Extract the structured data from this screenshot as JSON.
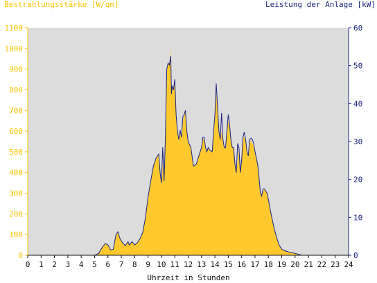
{
  "chart_data": {
    "type": "area",
    "ylabel_left": "Bestrahlungsstärke [W/qm]",
    "ylabel_right": "Leistung der Anlage [kW]",
    "xlabel": "Uhrzeit in Stunden",
    "xlim": [
      0,
      24
    ],
    "ylim_left": [
      0,
      1100
    ],
    "ylim_right": [
      0,
      60
    ],
    "x_ticks": [
      "0",
      "1",
      "2",
      "3",
      "4",
      "5",
      "6",
      "7",
      "8",
      "9",
      "10",
      "11",
      "12",
      "13",
      "14",
      "15",
      "16",
      "17",
      "18",
      "19",
      "20",
      "21",
      "22",
      "23",
      "24"
    ],
    "y_ticks_left": [
      "0",
      "100",
      "200",
      "300",
      "400",
      "500",
      "600",
      "700",
      "800",
      "900",
      "1000",
      "1100"
    ],
    "y_ticks_right": [
      "0",
      "10",
      "20",
      "30",
      "40",
      "50",
      "60"
    ],
    "grid": false,
    "colors": {
      "irradiance_fill": "#ffc92e",
      "power_line": "#1a237e",
      "plot_bg": "#dcdcdc",
      "left_axis": "#f5c400",
      "right_axis": "#1a237e"
    },
    "series": [
      {
        "axis": "left",
        "points": [
          [
            0,
            0
          ],
          [
            5,
            0
          ],
          [
            5.3,
            10
          ],
          [
            5.6,
            40
          ],
          [
            5.8,
            55
          ],
          [
            6.0,
            50
          ],
          [
            6.2,
            25
          ],
          [
            6.4,
            30
          ],
          [
            6.6,
            95
          ],
          [
            6.75,
            110
          ],
          [
            6.9,
            80
          ],
          [
            7.1,
            60
          ],
          [
            7.3,
            45
          ],
          [
            7.5,
            65
          ],
          [
            7.6,
            50
          ],
          [
            7.8,
            65
          ],
          [
            8.0,
            50
          ],
          [
            8.2,
            60
          ],
          [
            8.4,
            80
          ],
          [
            8.6,
            110
          ],
          [
            8.8,
            180
          ],
          [
            9.0,
            280
          ],
          [
            9.2,
            360
          ],
          [
            9.4,
            430
          ],
          [
            9.6,
            470
          ],
          [
            9.8,
            490
          ],
          [
            9.9,
            400
          ],
          [
            10.0,
            350
          ],
          [
            10.1,
            450
          ],
          [
            10.2,
            360
          ],
          [
            10.3,
            580
          ],
          [
            10.4,
            900
          ],
          [
            10.5,
            930
          ],
          [
            10.6,
            920
          ],
          [
            10.7,
            1000
          ],
          [
            10.75,
            780
          ],
          [
            10.8,
            820
          ],
          [
            10.9,
            800
          ],
          [
            11.0,
            850
          ],
          [
            11.1,
            680
          ],
          [
            11.2,
            600
          ],
          [
            11.3,
            560
          ],
          [
            11.4,
            590
          ],
          [
            11.5,
            570
          ],
          [
            11.6,
            640
          ],
          [
            11.7,
            680
          ],
          [
            11.8,
            700
          ],
          [
            11.9,
            600
          ],
          [
            12.0,
            550
          ],
          [
            12.2,
            520
          ],
          [
            12.4,
            430
          ],
          [
            12.6,
            440
          ],
          [
            12.8,
            480
          ],
          [
            13.0,
            520
          ],
          [
            13.1,
            560
          ],
          [
            13.2,
            560
          ],
          [
            13.3,
            520
          ],
          [
            13.4,
            500
          ],
          [
            13.5,
            520
          ],
          [
            13.6,
            510
          ],
          [
            13.8,
            500
          ],
          [
            13.9,
            600
          ],
          [
            14.0,
            680
          ],
          [
            14.1,
            780
          ],
          [
            14.2,
            720
          ],
          [
            14.3,
            600
          ],
          [
            14.4,
            560
          ],
          [
            14.5,
            600
          ],
          [
            14.6,
            560
          ],
          [
            14.7,
            520
          ],
          [
            14.8,
            520
          ],
          [
            14.9,
            600
          ],
          [
            15.0,
            650
          ],
          [
            15.1,
            630
          ],
          [
            15.2,
            560
          ],
          [
            15.3,
            520
          ],
          [
            15.4,
            520
          ],
          [
            15.5,
            440
          ],
          [
            15.6,
            400
          ],
          [
            15.7,
            460
          ],
          [
            15.8,
            520
          ],
          [
            15.9,
            400
          ],
          [
            16.0,
            460
          ],
          [
            16.1,
            570
          ],
          [
            16.2,
            570
          ],
          [
            16.3,
            560
          ],
          [
            16.4,
            500
          ],
          [
            16.5,
            480
          ],
          [
            16.6,
            560
          ],
          [
            16.7,
            550
          ],
          [
            16.8,
            540
          ],
          [
            16.9,
            530
          ],
          [
            17.0,
            500
          ],
          [
            17.2,
            440
          ],
          [
            17.3,
            380
          ],
          [
            17.4,
            300
          ],
          [
            17.5,
            280
          ],
          [
            17.6,
            310
          ],
          [
            17.7,
            320
          ],
          [
            17.8,
            310
          ],
          [
            17.9,
            300
          ],
          [
            18.0,
            270
          ],
          [
            18.2,
            200
          ],
          [
            18.4,
            140
          ],
          [
            18.6,
            90
          ],
          [
            18.8,
            50
          ],
          [
            19.0,
            30
          ],
          [
            19.3,
            20
          ],
          [
            19.6,
            15
          ],
          [
            20.0,
            10
          ],
          [
            20.5,
            0
          ],
          [
            24,
            0
          ]
        ]
      },
      {
        "axis": "right",
        "points": [
          [
            0,
            0
          ],
          [
            5,
            0
          ],
          [
            5.3,
            0.5
          ],
          [
            5.6,
            2.2
          ],
          [
            5.8,
            3.1
          ],
          [
            6.0,
            2.7
          ],
          [
            6.2,
            1.4
          ],
          [
            6.4,
            1.6
          ],
          [
            6.6,
            5.4
          ],
          [
            6.75,
            6.2
          ],
          [
            6.9,
            4.4
          ],
          [
            7.1,
            3.3
          ],
          [
            7.3,
            2.5
          ],
          [
            7.5,
            3.6
          ],
          [
            7.6,
            2.7
          ],
          [
            7.8,
            3.6
          ],
          [
            8.0,
            2.7
          ],
          [
            8.2,
            3.3
          ],
          [
            8.4,
            4.4
          ],
          [
            8.6,
            6.0
          ],
          [
            8.8,
            9.8
          ],
          [
            9.0,
            15.3
          ],
          [
            9.2,
            19.6
          ],
          [
            9.4,
            23.5
          ],
          [
            9.6,
            25.6
          ],
          [
            9.8,
            26.7
          ],
          [
            9.9,
            21.8
          ],
          [
            10.0,
            19.1
          ],
          [
            10.1,
            28.5
          ],
          [
            10.2,
            19.6
          ],
          [
            10.3,
            31.6
          ],
          [
            10.4,
            49.1
          ],
          [
            10.5,
            50.7
          ],
          [
            10.6,
            50.2
          ],
          [
            10.7,
            52.5
          ],
          [
            10.75,
            42.5
          ],
          [
            10.8,
            44.7
          ],
          [
            10.9,
            43.6
          ],
          [
            11.0,
            46.4
          ],
          [
            11.1,
            37.1
          ],
          [
            11.2,
            32.7
          ],
          [
            11.3,
            30.5
          ],
          [
            11.4,
            33.0
          ],
          [
            11.5,
            31.1
          ],
          [
            11.6,
            36.5
          ],
          [
            11.7,
            37.1
          ],
          [
            11.8,
            38.2
          ],
          [
            11.9,
            32.7
          ],
          [
            12.0,
            30.0
          ],
          [
            12.2,
            28.4
          ],
          [
            12.4,
            23.5
          ],
          [
            12.6,
            24.0
          ],
          [
            12.8,
            26.2
          ],
          [
            13.0,
            28.4
          ],
          [
            13.1,
            31.1
          ],
          [
            13.2,
            31.1
          ],
          [
            13.3,
            28.4
          ],
          [
            13.4,
            27.3
          ],
          [
            13.5,
            28.4
          ],
          [
            13.6,
            27.8
          ],
          [
            13.8,
            27.3
          ],
          [
            13.9,
            32.7
          ],
          [
            14.0,
            37.1
          ],
          [
            14.1,
            45.3
          ],
          [
            14.2,
            39.3
          ],
          [
            14.3,
            32.7
          ],
          [
            14.4,
            30.5
          ],
          [
            14.5,
            37.5
          ],
          [
            14.6,
            30.5
          ],
          [
            14.7,
            28.4
          ],
          [
            14.8,
            28.4
          ],
          [
            14.9,
            32.7
          ],
          [
            15.0,
            37.1
          ],
          [
            15.1,
            34.4
          ],
          [
            15.2,
            30.5
          ],
          [
            15.3,
            28.4
          ],
          [
            15.4,
            28.4
          ],
          [
            15.5,
            24.0
          ],
          [
            15.6,
            21.8
          ],
          [
            15.7,
            29.5
          ],
          [
            15.8,
            28.4
          ],
          [
            15.9,
            21.8
          ],
          [
            16.0,
            25.1
          ],
          [
            16.1,
            31.1
          ],
          [
            16.2,
            32.5
          ],
          [
            16.3,
            30.5
          ],
          [
            16.4,
            27.3
          ],
          [
            16.5,
            26.2
          ],
          [
            16.6,
            30.5
          ],
          [
            16.7,
            30.9
          ],
          [
            16.8,
            30.5
          ],
          [
            16.9,
            29.5
          ],
          [
            17.0,
            27.3
          ],
          [
            17.2,
            24.0
          ],
          [
            17.3,
            20.7
          ],
          [
            17.4,
            16.4
          ],
          [
            17.5,
            15.6
          ],
          [
            17.6,
            17.5
          ],
          [
            17.7,
            17.5
          ],
          [
            17.8,
            16.9
          ],
          [
            17.9,
            16.4
          ],
          [
            18.0,
            14.7
          ],
          [
            18.2,
            10.9
          ],
          [
            18.4,
            7.6
          ],
          [
            18.6,
            4.9
          ],
          [
            18.8,
            2.7
          ],
          [
            19.0,
            1.6
          ],
          [
            19.3,
            1.1
          ],
          [
            19.6,
            0.8
          ],
          [
            20.0,
            0.5
          ],
          [
            20.5,
            0
          ],
          [
            24,
            0
          ]
        ]
      }
    ]
  }
}
